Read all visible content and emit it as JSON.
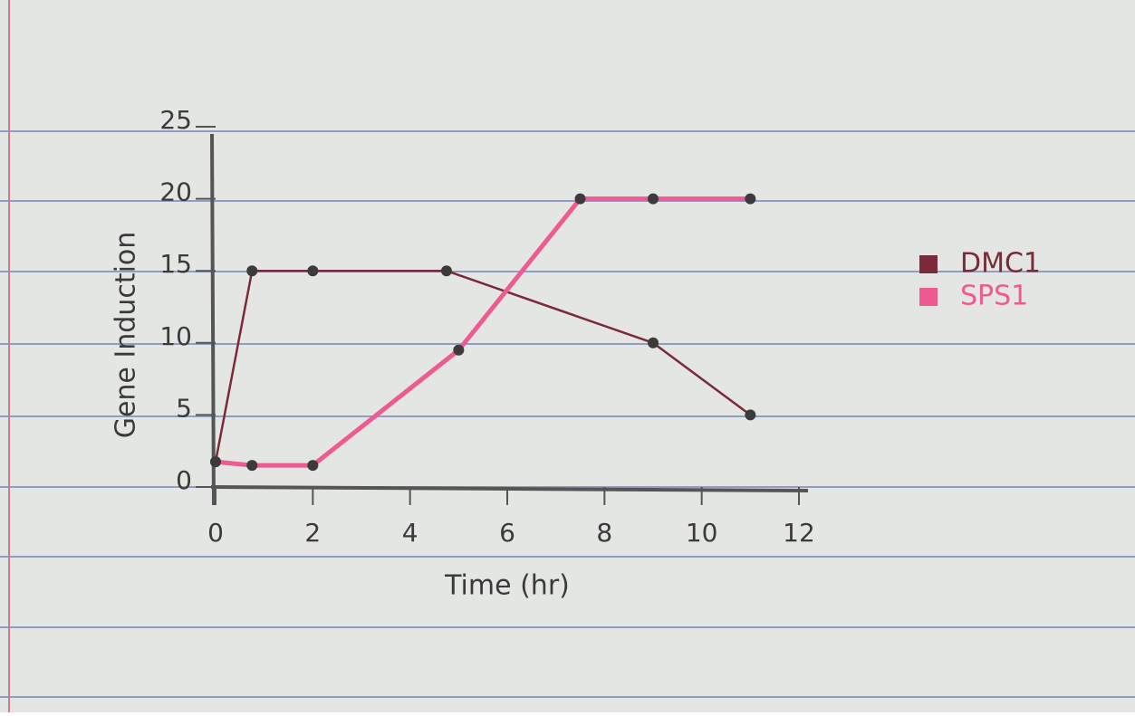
{
  "chart_data": {
    "type": "line",
    "ylabel": "Gene Induction",
    "xlabel": "Time (hr)",
    "xlim": [
      0,
      12
    ],
    "xticks": [
      0,
      2,
      4,
      6,
      8,
      10,
      12
    ],
    "ylim": [
      0,
      25
    ],
    "yticks": [
      0,
      5,
      10,
      15,
      20,
      25
    ],
    "legend": "right",
    "series": [
      {
        "name": "DMC1",
        "color": "#7a2a38",
        "x": [
          0,
          0.75,
          2,
          4.75,
          9,
          11
        ],
        "values": [
          1.75,
          15,
          15,
          15,
          10,
          5
        ]
      },
      {
        "name": "SPS1",
        "color": "#ee5a92",
        "x": [
          0,
          0.75,
          2,
          5,
          7.5,
          9,
          11
        ],
        "values": [
          1.75,
          1.5,
          1.5,
          9.5,
          20,
          20,
          20
        ]
      }
    ]
  }
}
